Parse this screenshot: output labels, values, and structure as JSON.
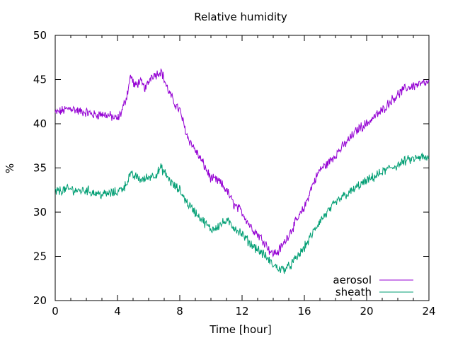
{
  "chart_data": {
    "type": "line",
    "title": "Relative humidity",
    "xlabel": "Time [hour]",
    "ylabel": "%",
    "xlim": [
      0,
      24
    ],
    "ylim": [
      20,
      50
    ],
    "x_ticks": [
      "0",
      "4",
      "8",
      "12",
      "16",
      "20",
      "24"
    ],
    "y_ticks": [
      "20",
      "25",
      "30",
      "35",
      "40",
      "45",
      "50"
    ],
    "grid": false,
    "legend_position": "bottom-right",
    "series": [
      {
        "name": "aerosol",
        "color": "#9400D3",
        "x": [
          0,
          0.5,
          1,
          1.5,
          2,
          2.5,
          3,
          3.5,
          4,
          4.3,
          4.6,
          4.85,
          5.1,
          5.4,
          5.8,
          6.2,
          6.5,
          6.8,
          7.2,
          7.6,
          8,
          8.5,
          9,
          9.5,
          10,
          10.5,
          11,
          11.5,
          12,
          12.5,
          13,
          13.5,
          13.9,
          14.3,
          14.7,
          15,
          15.5,
          16,
          16.5,
          17,
          17.5,
          18,
          18.5,
          19,
          19.5,
          20,
          20.5,
          21,
          21.5,
          22,
          22.5,
          23,
          23.5,
          24
        ],
        "values": [
          41.2,
          41.5,
          41.8,
          41.4,
          41.3,
          41.0,
          41.1,
          40.9,
          40.5,
          41.5,
          43.2,
          45.5,
          44.2,
          44.8,
          44.0,
          45.5,
          45.6,
          46.0,
          44.0,
          42.5,
          41.5,
          38.5,
          37.0,
          35.5,
          33.8,
          33.5,
          32.5,
          30.8,
          30.0,
          28.5,
          27.5,
          26.5,
          25.3,
          25.5,
          26.5,
          27.5,
          29.0,
          30.5,
          33.0,
          34.8,
          35.5,
          36.5,
          37.5,
          38.5,
          39.5,
          40.0,
          40.8,
          41.5,
          42.5,
          43.3,
          44.0,
          44.3,
          44.5,
          44.6
        ]
      },
      {
        "name": "sheath",
        "color": "#009E73",
        "x": [
          0,
          0.5,
          1,
          1.5,
          2,
          2.5,
          3,
          3.5,
          4,
          4.5,
          4.8,
          5.2,
          5.6,
          6,
          6.5,
          6.8,
          7.2,
          7.6,
          8,
          8.5,
          9,
          9.5,
          10,
          10.5,
          11,
          11.5,
          12,
          12.5,
          13,
          13.5,
          14,
          14.5,
          15,
          15.5,
          16,
          16.5,
          17,
          17.5,
          18,
          18.5,
          19,
          19.5,
          20,
          20.5,
          21,
          21.5,
          22,
          22.5,
          23,
          23.5,
          24
        ],
        "values": [
          32.3,
          32.5,
          32.6,
          32.4,
          32.5,
          32.2,
          32.0,
          32.1,
          32.3,
          33.0,
          34.2,
          34.0,
          33.6,
          34.0,
          34.3,
          35.0,
          34.0,
          33.0,
          32.5,
          31.0,
          30.0,
          29.0,
          28.0,
          28.5,
          29.0,
          28.3,
          27.5,
          26.5,
          25.8,
          25.0,
          24.0,
          23.5,
          23.8,
          24.8,
          26.0,
          27.5,
          29.0,
          30.0,
          31.0,
          31.8,
          32.3,
          33.0,
          33.5,
          34.0,
          34.5,
          35.0,
          35.3,
          35.8,
          36.0,
          36.2,
          36.0
        ]
      }
    ]
  }
}
